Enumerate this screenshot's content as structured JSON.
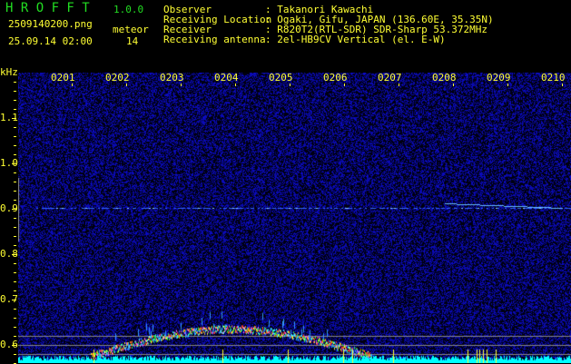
{
  "app": {
    "logo": "H R O F F T",
    "version": "1.0.0"
  },
  "file": {
    "name": "2509140200.png",
    "datetime": "25.09.14 02:00",
    "count_label": "meteor",
    "count": "14"
  },
  "info": [
    {
      "label": "Observer",
      "value": ": Takanori Kawachi"
    },
    {
      "label": "Receiving Location",
      "value": ": Ogaki, Gifu, JAPAN (136.60E, 35.35N)"
    },
    {
      "label": "Receiver",
      "value": ": R820T2(RTL-SDR) SDR-Sharp 53.372MHz"
    },
    {
      "label": "Receiving antenna",
      "value": ": 2el-HB9CV Vertical (el. E-W)"
    }
  ],
  "axis": {
    "y_unit": "kHz",
    "y_ticks": [
      "1.1",
      "1.0",
      "0.9",
      "0.8",
      "0.7",
      "0.6"
    ],
    "x_ticks": [
      "0201",
      "0202",
      "0203",
      "0204",
      "0205",
      "0206",
      "0207",
      "0208",
      "0209",
      "0210"
    ]
  },
  "colors": {
    "text": "#ffff33",
    "logo": "#22dd22",
    "noise": "#1a1aa0",
    "histogram": "#00ffff"
  }
}
